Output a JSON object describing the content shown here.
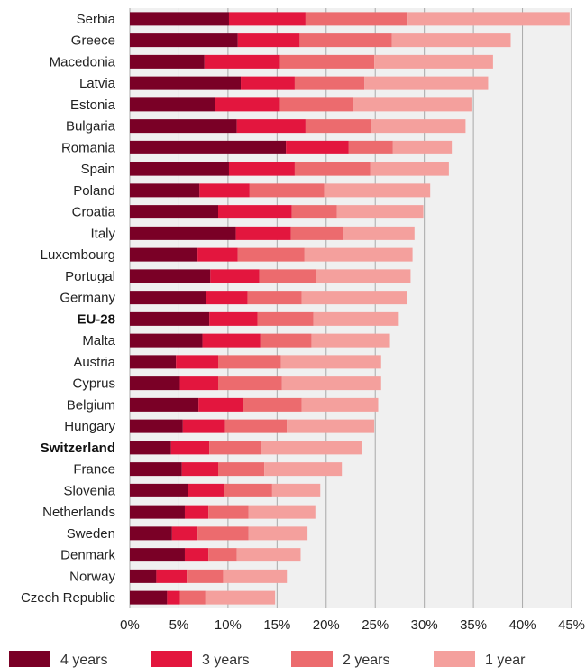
{
  "chart_data": {
    "type": "bar",
    "orientation": "horizontal",
    "stacked": true,
    "title": "",
    "xlabel": "",
    "ylabel": "",
    "xlim": [
      0,
      45
    ],
    "ticks": [
      0,
      5,
      10,
      15,
      20,
      25,
      30,
      35,
      40,
      45
    ],
    "tick_suffix": "%",
    "grid": true,
    "legend_position": "bottom",
    "highlighted_categories": [
      "EU-28",
      "Switzerland"
    ],
    "categories": [
      "Serbia",
      "Greece",
      "Macedonia",
      "Latvia",
      "Estonia",
      "Bulgaria",
      "Romania",
      "Spain",
      "Poland",
      "Croatia",
      "Italy",
      "Luxembourg",
      "Portugal",
      "Germany",
      "EU-28",
      "Malta",
      "Austria",
      "Cyprus",
      "Belgium",
      "Hungary",
      "Switzerland",
      "France",
      "Slovenia",
      "Netherlands",
      "Sweden",
      "Denmark",
      "Norway",
      "Czech Republic"
    ],
    "series": [
      {
        "name": "4 years",
        "color": "#7a0026",
        "values": [
          10.1,
          11.0,
          7.6,
          11.3,
          8.7,
          10.9,
          15.9,
          10.1,
          7.1,
          9.0,
          10.8,
          6.9,
          8.2,
          7.8,
          8.1,
          7.4,
          4.7,
          5.1,
          7.0,
          5.4,
          4.2,
          5.3,
          5.9,
          5.6,
          4.3,
          5.6,
          2.7,
          3.8
        ]
      },
      {
        "name": "3 years",
        "color": "#e3163e",
        "values": [
          7.8,
          6.3,
          7.7,
          5.5,
          6.6,
          7.0,
          6.4,
          6.7,
          5.1,
          7.5,
          5.6,
          4.1,
          5.0,
          4.2,
          4.9,
          5.9,
          4.3,
          3.9,
          4.5,
          4.3,
          3.9,
          3.7,
          3.7,
          2.4,
          2.6,
          2.4,
          3.1,
          1.3
        ]
      },
      {
        "name": "2 years",
        "color": "#ec6b6e",
        "values": [
          10.4,
          9.4,
          9.6,
          7.1,
          7.4,
          6.7,
          4.5,
          7.7,
          7.6,
          4.6,
          5.3,
          6.8,
          5.8,
          5.5,
          5.7,
          5.2,
          6.4,
          6.5,
          6.0,
          6.3,
          5.3,
          4.7,
          4.9,
          4.1,
          5.2,
          2.9,
          3.7,
          2.6
        ]
      },
      {
        "name": "1 year",
        "color": "#f4a09d",
        "values": [
          16.5,
          12.1,
          12.1,
          12.6,
          12.1,
          9.6,
          6.0,
          8.0,
          10.8,
          8.8,
          7.3,
          11.0,
          9.6,
          10.7,
          8.7,
          8.0,
          10.2,
          10.1,
          7.8,
          8.9,
          10.2,
          7.9,
          4.9,
          6.8,
          6.0,
          6.5,
          6.5,
          7.1
        ]
      }
    ]
  }
}
